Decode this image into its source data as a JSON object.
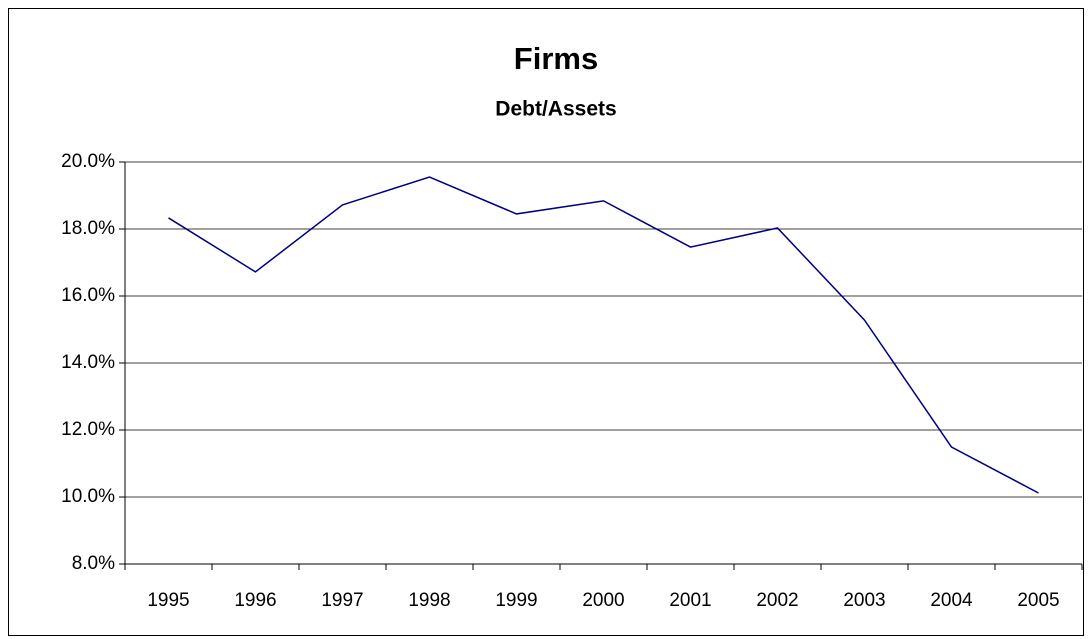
{
  "chart_data": {
    "type": "line",
    "title": "Firms",
    "subtitle": "Debt/Assets",
    "categories": [
      "1995",
      "1996",
      "1997",
      "1998",
      "1999",
      "2000",
      "2001",
      "2002",
      "2003",
      "2004",
      "2005"
    ],
    "series": [
      {
        "name": "Debt/Assets",
        "color": "#000080",
        "values": [
          18.33,
          16.72,
          18.72,
          19.55,
          18.45,
          18.84,
          17.46,
          18.03,
          15.28,
          11.49,
          10.12
        ]
      }
    ],
    "ylim": [
      8,
      20
    ],
    "yticks": [
      {
        "value": 8,
        "label": "8.0%"
      },
      {
        "value": 10,
        "label": "10.0%"
      },
      {
        "value": 12,
        "label": "12.0%"
      },
      {
        "value": 14,
        "label": "14.0%"
      },
      {
        "value": 16,
        "label": "16.0%"
      },
      {
        "value": 18,
        "label": "18.0%"
      },
      {
        "value": 20,
        "label": "20.0%"
      }
    ],
    "grid": true
  }
}
